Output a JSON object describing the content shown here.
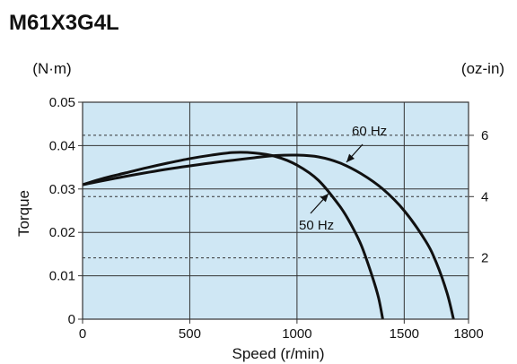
{
  "title": "M61X3G4L",
  "colors": {
    "plot_background": "#cfe7f4",
    "grid": "#333333",
    "curve": "#111111"
  },
  "chart_data": {
    "type": "line",
    "xlabel": "Speed (r/min)",
    "ylabel": "Torque",
    "y_unit_left": "(N·m)",
    "y_unit_right": "(oz-in)",
    "xlim": [
      0,
      1800
    ],
    "ylim": [
      0,
      0.05
    ],
    "x_ticks": [
      0,
      500,
      1000,
      1500,
      1800
    ],
    "x_tick_labels": [
      "0",
      "500",
      "1000",
      "1500",
      "1800"
    ],
    "y_ticks": [
      0,
      0.01,
      0.02,
      0.03,
      0.04,
      0.05
    ],
    "y_tick_labels": [
      "0",
      "0.01",
      "0.02",
      "0.03",
      "0.04",
      "0.05"
    ],
    "right_ticks_ozin": [
      2,
      4,
      6
    ],
    "right_tick_labels": [
      "2",
      "4",
      "6"
    ],
    "grid": true,
    "series": [
      {
        "name": "50 Hz",
        "x": [
          0,
          100,
          200,
          300,
          400,
          500,
          600,
          700,
          800,
          900,
          1000,
          1100,
          1200,
          1250,
          1300,
          1350,
          1380,
          1400
        ],
        "y": [
          0.031,
          0.0325,
          0.0337,
          0.0349,
          0.036,
          0.037,
          0.0378,
          0.0384,
          0.0383,
          0.0375,
          0.0355,
          0.032,
          0.026,
          0.022,
          0.017,
          0.01,
          0.005,
          0
        ]
      },
      {
        "name": "60 Hz",
        "x": [
          0,
          200,
          400,
          600,
          800,
          900,
          1000,
          1100,
          1200,
          1300,
          1400,
          1500,
          1600,
          1650,
          1700,
          1730
        ],
        "y": [
          0.031,
          0.0329,
          0.0346,
          0.036,
          0.0372,
          0.0377,
          0.0378,
          0.0374,
          0.036,
          0.0335,
          0.03,
          0.025,
          0.018,
          0.013,
          0.006,
          0
        ]
      }
    ]
  }
}
